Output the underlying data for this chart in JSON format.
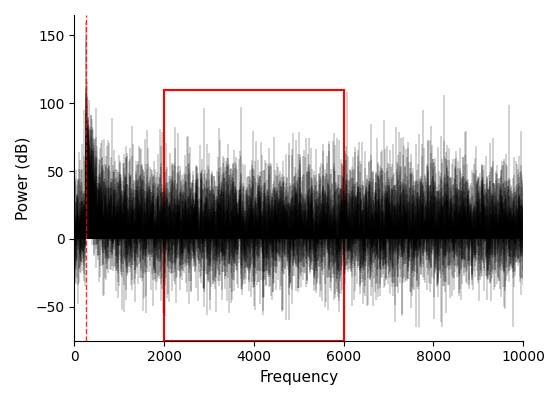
{
  "title": "",
  "xlabel": "Frequency",
  "ylabel": "Power (dB)",
  "xlim": [
    0,
    10000
  ],
  "ylim": [
    -75,
    165
  ],
  "yticks": [
    -50,
    0,
    50,
    100,
    150
  ],
  "xticks": [
    0,
    2000,
    4000,
    6000,
    8000,
    10000
  ],
  "num_freqs": 10000,
  "spike_freq": 250,
  "spike_power": 160,
  "red_dashed_x": 250,
  "rect_x1": 2000,
  "rect_x2": 6000,
  "rect_y1": -75,
  "rect_y2": 110,
  "rect_color": "red",
  "line_color": "black",
  "dashed_color": "red",
  "background_color": "white",
  "noise_floor_mean": 10,
  "noise_floor_std": 22,
  "noise_min": -65,
  "decay_end": 800,
  "decay_start_mean": 70,
  "decay_end_mean": 12
}
